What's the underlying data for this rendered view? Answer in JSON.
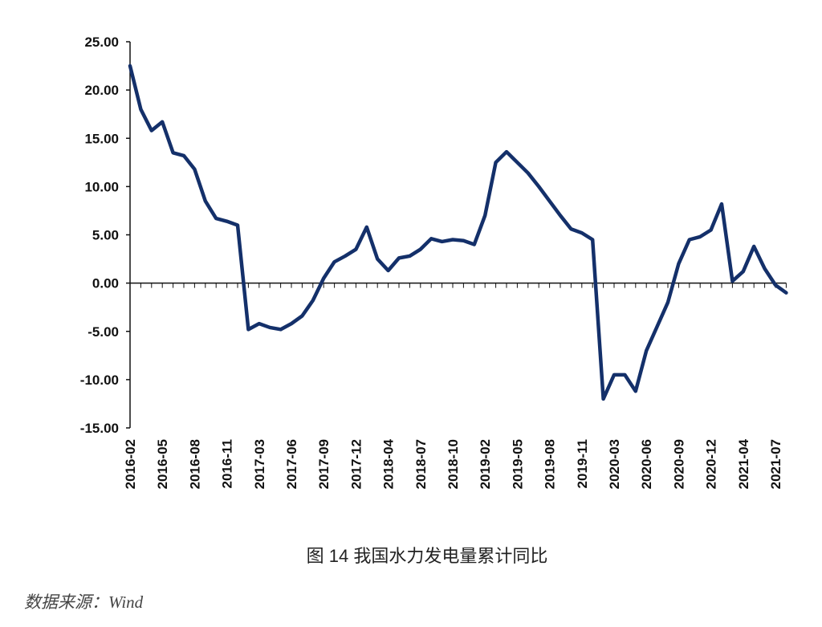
{
  "chart_data": {
    "type": "line",
    "title": "图 14  我国水力发电量累计同比",
    "source": "数据来源：Wind",
    "categories": [
      "2016-02",
      null,
      null,
      "2016-05",
      null,
      null,
      "2016-08",
      null,
      null,
      "2016-11",
      null,
      null,
      "2017-03",
      null,
      null,
      "2017-06",
      null,
      null,
      "2017-09",
      null,
      null,
      "2017-12",
      null,
      null,
      "2018-04",
      null,
      null,
      "2018-07",
      null,
      null,
      "2018-10",
      null,
      null,
      "2019-02",
      null,
      null,
      "2019-05",
      null,
      null,
      "2019-08",
      null,
      null,
      "2019-11",
      null,
      null,
      "2020-03",
      null,
      null,
      "2020-06",
      null,
      null,
      "2020-09",
      null,
      null,
      "2020-12",
      null,
      null,
      "2021-04",
      null,
      null,
      "2021-07",
      null
    ],
    "series": [
      {
        "color": "#14306a",
        "values": [
          22.5,
          18,
          15.8,
          16.7,
          13.5,
          13.2,
          11.8,
          8.5,
          6.7,
          6.4,
          6.0,
          -4.8,
          -4.2,
          -4.6,
          -4.8,
          -4.2,
          -3.4,
          -1.8,
          0.5,
          2.2,
          2.8,
          3.5,
          5.8,
          2.5,
          1.3,
          2.6,
          2.8,
          3.5,
          4.6,
          4.3,
          4.5,
          4.4,
          4.0,
          7.0,
          12.5,
          13.6,
          12.5,
          11.4,
          10.0,
          8.5,
          7.0,
          5.6,
          5.2,
          4.5,
          -12.0,
          -9.5,
          -9.5,
          -11.2,
          -7.0,
          -4.5,
          -2.0,
          2.0,
          4.5,
          4.8,
          5.5,
          8.2,
          0.2,
          1.2,
          3.8,
          1.5,
          -0.2,
          -1.0
        ]
      }
    ],
    "ylim": [
      -15,
      25
    ],
    "yticks": [
      {
        "value": 25,
        "label": "25.00"
      },
      {
        "value": 20,
        "label": "20.00"
      },
      {
        "value": 15,
        "label": "15.00"
      },
      {
        "value": 10,
        "label": "10.00"
      },
      {
        "value": 5,
        "label": "5.00"
      },
      {
        "value": 0,
        "label": "0.00"
      },
      {
        "value": -5,
        "label": "-5.00"
      },
      {
        "value": -10,
        "label": "-10.00"
      },
      {
        "value": -15,
        "label": "-15.00"
      }
    ]
  }
}
